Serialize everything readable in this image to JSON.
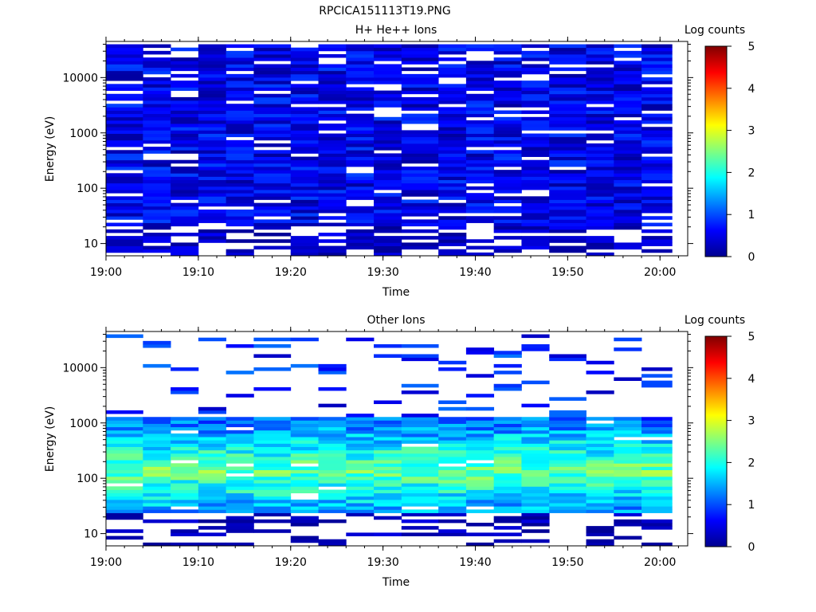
{
  "figure": {
    "filename": "RPCICA151113T19.PNG"
  },
  "chart_data": [
    {
      "type": "heatmap",
      "title": "H+ He++ Ions",
      "xlabel": "Time",
      "ylabel": "Energy (eV)",
      "y_scale": "log",
      "ylim": [
        6,
        45000
      ],
      "xlim": [
        "19:00",
        "20:03"
      ],
      "x_ticks": [
        "19:00",
        "19:10",
        "19:20",
        "19:30",
        "19:40",
        "19:50",
        "20:00"
      ],
      "y_ticks": [
        {
          "value": 10,
          "label": "10"
        },
        {
          "value": 100,
          "label": "100"
        },
        {
          "value": 1000,
          "label": "1000"
        },
        {
          "value": 10000,
          "label": "10000"
        }
      ],
      "colorbar": {
        "label": "Log counts",
        "range": [
          0,
          5
        ],
        "ticks": [
          "0",
          "1",
          "2",
          "3",
          "4",
          "5"
        ]
      },
      "time_bins": [
        "19:00",
        "19:04",
        "19:07",
        "19:10",
        "19:13",
        "19:16",
        "19:20",
        "19:23",
        "19:26",
        "19:29",
        "19:32",
        "19:36",
        "19:39",
        "19:42",
        "19:45",
        "19:48",
        "19:52",
        "19:55",
        "19:58"
      ],
      "energy_range_eV": [
        6,
        40000
      ],
      "log_counts_typical": [
        0.2,
        0.9
      ],
      "note_low_energy": "sparse counts below ~20 eV"
    },
    {
      "type": "heatmap",
      "title": "Other Ions",
      "xlabel": "Time",
      "ylabel": "Energy (eV)",
      "y_scale": "log",
      "ylim": [
        6,
        45000
      ],
      "xlim": [
        "19:00",
        "20:03"
      ],
      "x_ticks": [
        "19:00",
        "19:10",
        "19:20",
        "19:30",
        "19:40",
        "19:50",
        "20:00"
      ],
      "y_ticks": [
        {
          "value": 10,
          "label": "10"
        },
        {
          "value": 100,
          "label": "100"
        },
        {
          "value": 1000,
          "label": "1000"
        },
        {
          "value": 10000,
          "label": "10000"
        }
      ],
      "colorbar": {
        "label": "Log counts",
        "range": [
          0,
          5
        ],
        "ticks": [
          "0",
          "1",
          "2",
          "3",
          "4",
          "5"
        ]
      },
      "time_bins": [
        "19:00",
        "19:04",
        "19:07",
        "19:10",
        "19:13",
        "19:16",
        "19:20",
        "19:23",
        "19:26",
        "19:29",
        "19:32",
        "19:36",
        "19:39",
        "19:42",
        "19:45",
        "19:48",
        "19:52",
        "19:55",
        "19:58"
      ],
      "peak_energy_eV": [
        60,
        300
      ],
      "peak_log_counts": [
        2.2,
        3.0
      ],
      "sparse_high_energy_log_counts": [
        0.3,
        1.0
      ]
    }
  ]
}
